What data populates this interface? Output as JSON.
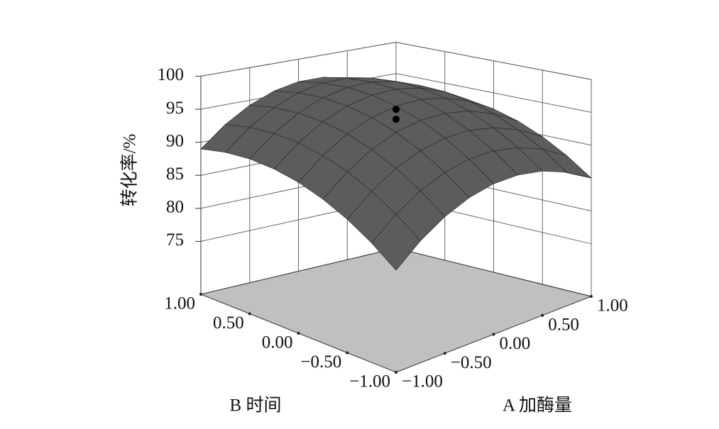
{
  "chart_data": {
    "type": "surface3d",
    "z_label": "转化率/%",
    "a_label": "A 加酶量",
    "b_label": "B 时间",
    "alim": [
      -1,
      1
    ],
    "blim": [
      -1,
      1
    ],
    "zlim": [
      67,
      100
    ],
    "aticks": [
      {
        "value": -1,
        "label": "−1.00"
      },
      {
        "value": -0.5,
        "label": "−0.50"
      },
      {
        "value": 0,
        "label": "0.00"
      },
      {
        "value": 0.5,
        "label": "0.50"
      },
      {
        "value": 1,
        "label": "1.00"
      }
    ],
    "bticks": [
      {
        "value": -1,
        "label": "−1.00"
      },
      {
        "value": -0.5,
        "label": "−0.50"
      },
      {
        "value": 0,
        "label": "0.00"
      },
      {
        "value": 0.5,
        "label": "0.50"
      },
      {
        "value": 1,
        "label": "1.00"
      }
    ],
    "zticks": [
      75,
      80,
      85,
      90,
      95,
      100
    ],
    "grid": true,
    "surface_color": "#5c5c5c",
    "floor_color": "#c0c0c0",
    "surface": {
      "a": [
        -1,
        -0.75,
        -0.5,
        -0.25,
        0,
        0.25,
        0.5,
        0.75,
        1
      ],
      "b": [
        -1,
        -0.75,
        -0.5,
        -0.25,
        0,
        0.25,
        0.5,
        0.75,
        1
      ],
      "z": [
        [
          82,
          84.625,
          86.75,
          88.375,
          89.5,
          90.125,
          90.25,
          89.875,
          89
        ],
        [
          85,
          87.625,
          89.75,
          91.375,
          92.5,
          93.125,
          93.25,
          92.875,
          92
        ],
        [
          87.25,
          89.875,
          92,
          93.625,
          94.75,
          95.375,
          95.5,
          95.125,
          94.25
        ],
        [
          88.75,
          91.375,
          93.5,
          95.125,
          96.25,
          96.875,
          97,
          96.625,
          95.75
        ],
        [
          89.5,
          92.125,
          94.25,
          95.875,
          97,
          97.625,
          97.75,
          97.375,
          96.5
        ],
        [
          89.5,
          92.125,
          94.25,
          95.875,
          97,
          97.625,
          97.75,
          97.375,
          96.5
        ],
        [
          88.75,
          91.375,
          93.5,
          95.125,
          96.25,
          96.875,
          97,
          96.625,
          95.75
        ],
        [
          87.25,
          89.875,
          92,
          93.625,
          94.75,
          95.375,
          95.5,
          95.125,
          94.25
        ],
        [
          85,
          87.625,
          89.75,
          91.375,
          92.5,
          93.125,
          93.25,
          92.875,
          92
        ]
      ]
    },
    "design_points": {
      "a": [
        0,
        0
      ],
      "b": [
        0,
        0
      ],
      "z": [
        96.5,
        95
      ]
    }
  }
}
